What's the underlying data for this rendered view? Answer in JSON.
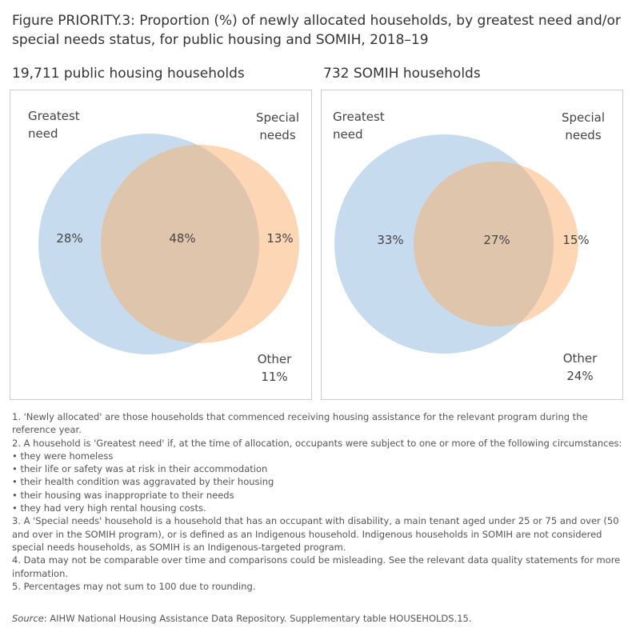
{
  "title": "Figure PRIORITY.3: Proportion (%) of newly allocated households, by greatest need and/or special needs status, for public housing and SOMIH, 2018–19",
  "chart_data": [
    {
      "type": "venn",
      "title": "19,711 public housing households",
      "series": [
        {
          "name": "Greatest need",
          "color": "#8db9de"
        },
        {
          "name": "Special needs",
          "color": "#f9ad6c"
        }
      ],
      "categories": [
        null,
        null,
        null,
        "Other"
      ],
      "values": [
        28,
        48,
        13,
        11
      ],
      "value_labels": [
        "28%",
        "48%",
        "13%",
        "11%"
      ]
    },
    {
      "type": "venn",
      "title": "732 SOMIH households",
      "series": [
        {
          "name": "Greatest need",
          "color": "#8db9de"
        },
        {
          "name": "Special needs",
          "color": "#f9ad6c"
        }
      ],
      "categories": [
        null,
        null,
        null,
        "Other"
      ],
      "values": [
        33,
        27,
        15,
        24
      ],
      "value_labels": [
        "33%",
        "27%",
        "15%",
        "24%"
      ]
    }
  ],
  "notes": [
    "1. 'Newly allocated' are those households that commenced receiving housing assistance for the relevant program during the reference year.",
    "2. A household is 'Greatest need' if, at the time of allocation, occupants were subject to one or more of the following circumstances:",
    "• they were homeless",
    "• their life or safety was at risk in their accommodation",
    "• their health condition was aggravated by their housing",
    "• their housing was inappropriate to their needs",
    "• they had very high rental housing costs.",
    "3. A 'Special needs' household is a household that has an occupant with disability, a main tenant aged under 25 or 75 and over (50 and over in the SOMIH program), or is defined as an Indigenous household. Indigenous households in SOMIH are not considered special needs households, as SOMIH is an Indigenous-targeted program.",
    "4. Data may not be comparable over time and comparisons could be misleading. See the relevant data quality statements for more information.",
    "5. Percentages may not sum to 100 due to rounding."
  ],
  "source_label": "Source",
  "source_text": ": AIHW National Housing Assistance Data Repository. Supplementary table HOUSEHOLDS.15."
}
